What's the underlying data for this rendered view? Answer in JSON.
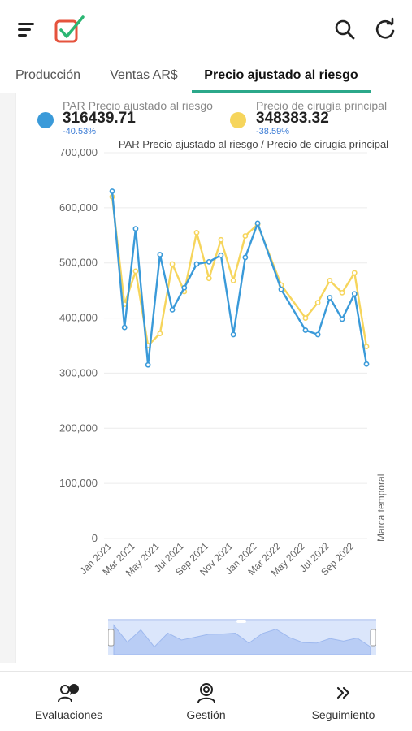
{
  "header": {
    "menu_icon": "hamburger-menu-icon",
    "logo": "checkbox-check-logo",
    "search_icon": "search-icon",
    "refresh_icon": "refresh-icon"
  },
  "tabs": [
    {
      "label": "Producción",
      "active": false
    },
    {
      "label": "Ventas AR$",
      "active": false
    },
    {
      "label": "Precio ajustado al riesgo",
      "active": true
    }
  ],
  "legend": [
    {
      "name": "PAR Precio ajustado al riesgo",
      "value": "316439.71",
      "change": "-40.53%",
      "color": "#3a9ad9"
    },
    {
      "name": "Precio de cirugía principal",
      "value": "348383.32",
      "change": "-38.59%",
      "color": "#f6d55c"
    }
  ],
  "change_color": "#3a7bd5",
  "chart_data": {
    "type": "line",
    "title": "PAR Precio ajustado al riesgo / Precio de cirugía principal",
    "xlabel": "Marca temporal",
    "ylabel": "",
    "ylim": [
      0,
      700000
    ],
    "yticks": [
      "0",
      "100,000",
      "200,000",
      "300,000",
      "400,000",
      "500,000",
      "600,000",
      "700,000"
    ],
    "xticks": [
      "Jan 2021",
      "Mar 2021",
      "May 2021",
      "Jul 2021",
      "Sep 2021",
      "Nov 2021",
      "Jan 2022",
      "Mar 2022",
      "May 2022",
      "Jul 2022",
      "Sep 2022"
    ],
    "x": [
      "2021-01",
      "2021-02",
      "2021-03",
      "2021-04",
      "2021-05",
      "2021-06",
      "2021-07",
      "2021-08",
      "2021-09",
      "2021-10",
      "2021-11",
      "2021-12",
      "2022-01",
      "2022-03",
      "2022-05",
      "2022-06",
      "2022-07",
      "2022-08",
      "2022-09",
      "2022-10"
    ],
    "series": [
      {
        "name": "PAR Precio ajustado al riesgo",
        "color": "#3a9ad9",
        "values": [
          630000,
          383000,
          562000,
          315000,
          515000,
          415000,
          455000,
          498000,
          502000,
          514000,
          370000,
          510000,
          572000,
          452000,
          378000,
          370000,
          437000,
          398000,
          444000,
          316440
        ]
      },
      {
        "name": "Precio de cirugía principal",
        "color": "#f6d55c",
        "values": [
          620000,
          425000,
          485000,
          350000,
          372000,
          498000,
          448000,
          555000,
          472000,
          542000,
          468000,
          549000,
          570000,
          460000,
          400000,
          428000,
          468000,
          446000,
          482000,
          348383
        ]
      }
    ],
    "grid": true,
    "legend_position": "top"
  },
  "range_slider": {
    "label": "range-slider"
  },
  "bottom_nav": [
    {
      "label": "Evaluaciones",
      "icon": "people-chat-icon"
    },
    {
      "label": "Gestión",
      "icon": "person-settings-icon"
    },
    {
      "label": "Seguimiento",
      "icon": "double-chevron-right-icon"
    }
  ]
}
